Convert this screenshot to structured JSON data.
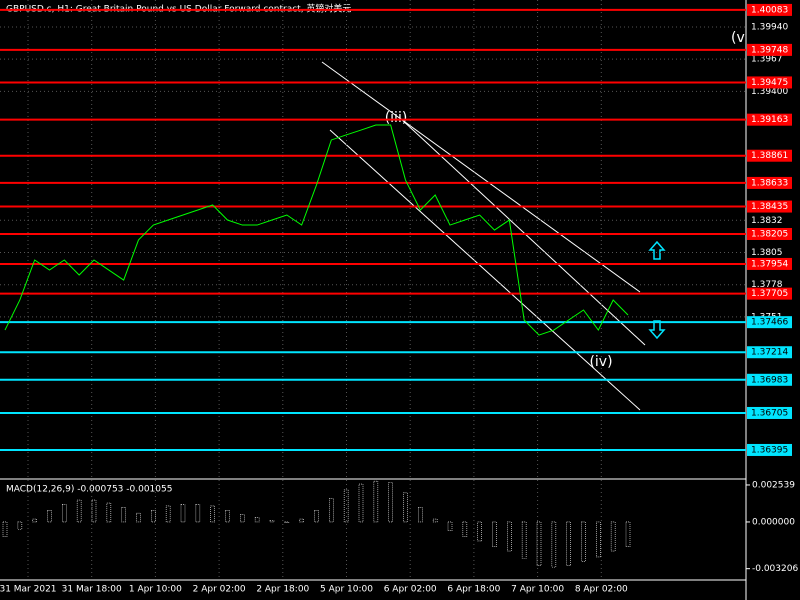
{
  "header": {
    "title": "GBPUSD.c, H1:  Great Britain Pound vs US Dollar Forward contract, 英镑对美元"
  },
  "chart_data": {
    "type": "line",
    "color": "#00ff00",
    "ylim": [
      1.3616,
      1.40166
    ],
    "yticks": [
      {
        "value": 1.3994,
        "label": "1.39940"
      },
      1.3967,
      {
        "value": 1.394,
        "label": "1.39400"
      },
      1.3832,
      1.3805,
      1.3778,
      1.3751
    ],
    "red_levels": [
      1.40083,
      1.39748,
      1.39475,
      1.39163,
      1.38861,
      1.38633,
      1.38435,
      1.38205,
      1.37954,
      1.37705
    ],
    "cyan_levels": [
      1.37466,
      1.37214,
      1.36983,
      1.36705,
      1.36395
    ],
    "time_labels": [
      "31 Mar 2021",
      "31 Mar 18:00",
      "1 Apr 10:00",
      "2 Apr 02:00",
      "2 Apr 18:00",
      "5 Apr 10:00",
      "6 Apr 02:00",
      "6 Apr 18:00",
      "7 Apr 10:00",
      "8 Apr 02:00"
    ],
    "values": [
      1.374,
      1.37652,
      1.37987,
      1.37903,
      1.37987,
      1.37861,
      1.37987,
      1.37903,
      1.37819,
      1.38155,
      1.3828,
      1.38322,
      1.38364,
      1.38406,
      1.38448,
      1.38322,
      1.3828,
      1.3828,
      1.38322,
      1.38364,
      1.3828,
      1.38616,
      1.38993,
      1.39035,
      1.39076,
      1.39118,
      1.39118,
      1.38657,
      1.38406,
      1.38532,
      1.3828,
      1.38322,
      1.38364,
      1.38238,
      1.38322,
      1.37484,
      1.37358,
      1.374,
      1.37484,
      1.37568,
      1.374,
      1.37652,
      1.37526
    ],
    "annotations": [
      "(iii)",
      "(iv)",
      "(v"
    ]
  },
  "macd": {
    "title": "MACD(12,26,9) -0.000753 -0.001055",
    "color": "#ffffff",
    "ylim": [
      -0.00467,
      0.00288
    ],
    "yticks": [
      0.002539,
      {
        "value": 0,
        "label": "0.000000"
      },
      -0.003206
    ],
    "values": [
      -0.001,
      -0.0005,
      0.0002,
      0.0008,
      0.0012,
      0.0015,
      0.0015,
      0.0013,
      0.001,
      0.0006,
      0.0008,
      0.0011,
      0.0012,
      0.0012,
      0.0011,
      0.0008,
      0.0005,
      0.0003,
      0.0001,
      0,
      0.0002,
      0.0008,
      0.0016,
      0.0022,
      0.0026,
      0.0028,
      0.0027,
      0.002,
      0.001,
      0.0002,
      -0.0006,
      -0.001,
      -0.0013,
      -0.0017,
      -0.002,
      -0.0025,
      -0.003,
      -0.0031,
      -0.003,
      -0.0027,
      -0.0024,
      -0.002,
      -0.0017
    ]
  }
}
